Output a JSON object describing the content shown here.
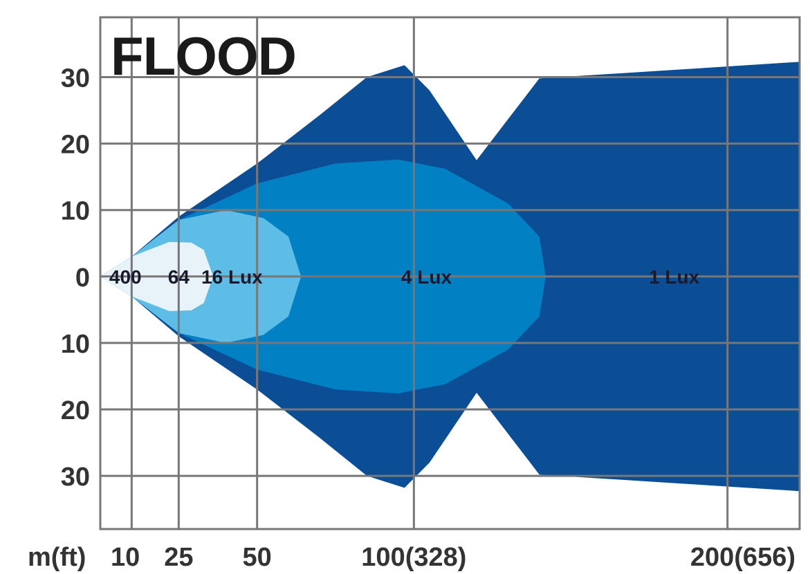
{
  "chart_data": {
    "type": "area",
    "title": "FLOOD",
    "x_axis": {
      "unit_label": "m(ft)",
      "ticks": [
        10,
        25,
        50,
        100,
        200
      ],
      "tick_labels": [
        "10",
        "25",
        "50",
        "100(328)",
        "200(656)"
      ],
      "range": [
        0,
        223
      ]
    },
    "y_axis": {
      "ticks": [
        30,
        20,
        10,
        0,
        -10,
        -20,
        -30
      ],
      "tick_labels": [
        "30",
        "20",
        "10",
        "0",
        "10",
        "20",
        "30"
      ],
      "range": [
        -38,
        39
      ]
    },
    "grid": true,
    "zones": [
      {
        "name": "1 Lux",
        "color": "#0c4e96",
        "outline": [
          [
            0,
            0
          ],
          [
            10,
            3
          ],
          [
            25,
            9
          ],
          [
            50,
            17
          ],
          [
            70,
            24.3
          ],
          [
            100,
            28.6
          ],
          [
            140,
            29.8
          ],
          [
            180,
            31
          ],
          [
            223,
            32.3
          ]
        ],
        "label_x": 183,
        "label_y": 0
      },
      {
        "name": "4 Lux",
        "color": "#0280c4",
        "outline": [
          [
            0,
            0
          ],
          [
            10,
            3
          ],
          [
            25,
            8.5
          ],
          [
            50,
            14
          ],
          [
            75,
            17
          ],
          [
            95,
            17.6
          ],
          [
            110,
            16.2
          ],
          [
            130,
            11
          ],
          [
            140,
            6
          ],
          [
            142,
            0
          ]
        ],
        "label_x": 104,
        "label_y": 0
      },
      {
        "name": "16 Lux",
        "color": "#5ebde7",
        "outline": [
          [
            0,
            0
          ],
          [
            10,
            3
          ],
          [
            25,
            8.5
          ],
          [
            40,
            10
          ],
          [
            52,
            8.8
          ],
          [
            60,
            6
          ],
          [
            64,
            0
          ]
        ],
        "label_x": 42,
        "label_y": 0
      },
      {
        "name": "64",
        "color": "#e7f2f9",
        "outline": [
          [
            0,
            0
          ],
          [
            10,
            3
          ],
          [
            22,
            5.2
          ],
          [
            29,
            5.1
          ],
          [
            33,
            4
          ],
          [
            36,
            0
          ]
        ],
        "label_x": 25,
        "label_y": 0
      },
      {
        "name": "400",
        "color": "#e7f2f9",
        "outline": [],
        "label_x": 8,
        "label_y": 0
      }
    ],
    "dark_lobe_extra": [
      [
        70,
        24.3
      ],
      [
        85,
        30
      ],
      [
        97,
        31.8
      ],
      [
        105,
        28
      ],
      [
        120,
        17.5
      ]
    ]
  },
  "colors": {
    "background": "#ffffff",
    "grid": "#777777",
    "text": "#333333"
  }
}
